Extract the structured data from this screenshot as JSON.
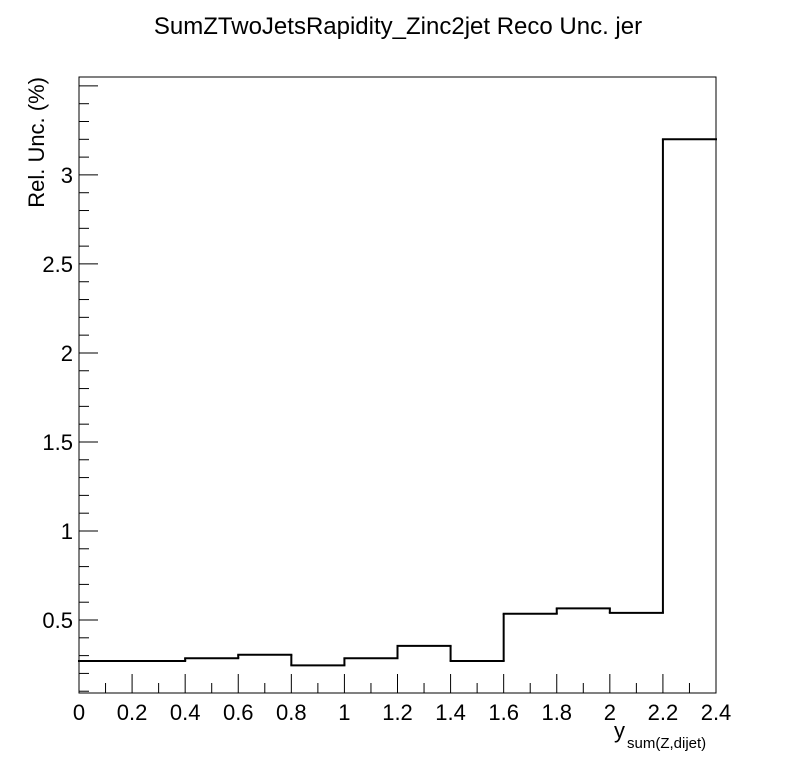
{
  "chart_data": {
    "type": "histogram",
    "title": "SumZTwoJetsRapidity_Zinc2jet Reco Unc. jer",
    "xlabel": "y",
    "xlabel_subscript": "sum(Z,dijet)",
    "ylabel": "Rel. Unc. (%)",
    "xlim": [
      0,
      2.4
    ],
    "ylim": [
      0.09,
      3.55
    ],
    "x_ticks": [
      "0",
      "0.2",
      "0.4",
      "0.6",
      "0.8",
      "1",
      "1.2",
      "1.4",
      "1.6",
      "1.8",
      "2",
      "2.2",
      "2.4"
    ],
    "y_ticks": [
      "0.5",
      "1",
      "1.5",
      "2",
      "2.5",
      "3"
    ],
    "grid": false,
    "legend": "none",
    "line_color": "#000000",
    "bins": [
      {
        "low": 0.0,
        "high": 0.2,
        "value": 0.27
      },
      {
        "low": 0.2,
        "high": 0.4,
        "value": 0.27
      },
      {
        "low": 0.4,
        "high": 0.6,
        "value": 0.285
      },
      {
        "low": 0.6,
        "high": 0.8,
        "value": 0.305
      },
      {
        "low": 0.8,
        "high": 1.0,
        "value": 0.245
      },
      {
        "low": 1.0,
        "high": 1.2,
        "value": 0.285
      },
      {
        "low": 1.2,
        "high": 1.4,
        "value": 0.355
      },
      {
        "low": 1.4,
        "high": 1.6,
        "value": 0.27
      },
      {
        "low": 1.6,
        "high": 1.8,
        "value": 0.535
      },
      {
        "low": 1.8,
        "high": 2.0,
        "value": 0.565
      },
      {
        "low": 2.0,
        "high": 2.2,
        "value": 0.54
      },
      {
        "low": 2.2,
        "high": 2.4,
        "value": 3.2
      }
    ]
  }
}
